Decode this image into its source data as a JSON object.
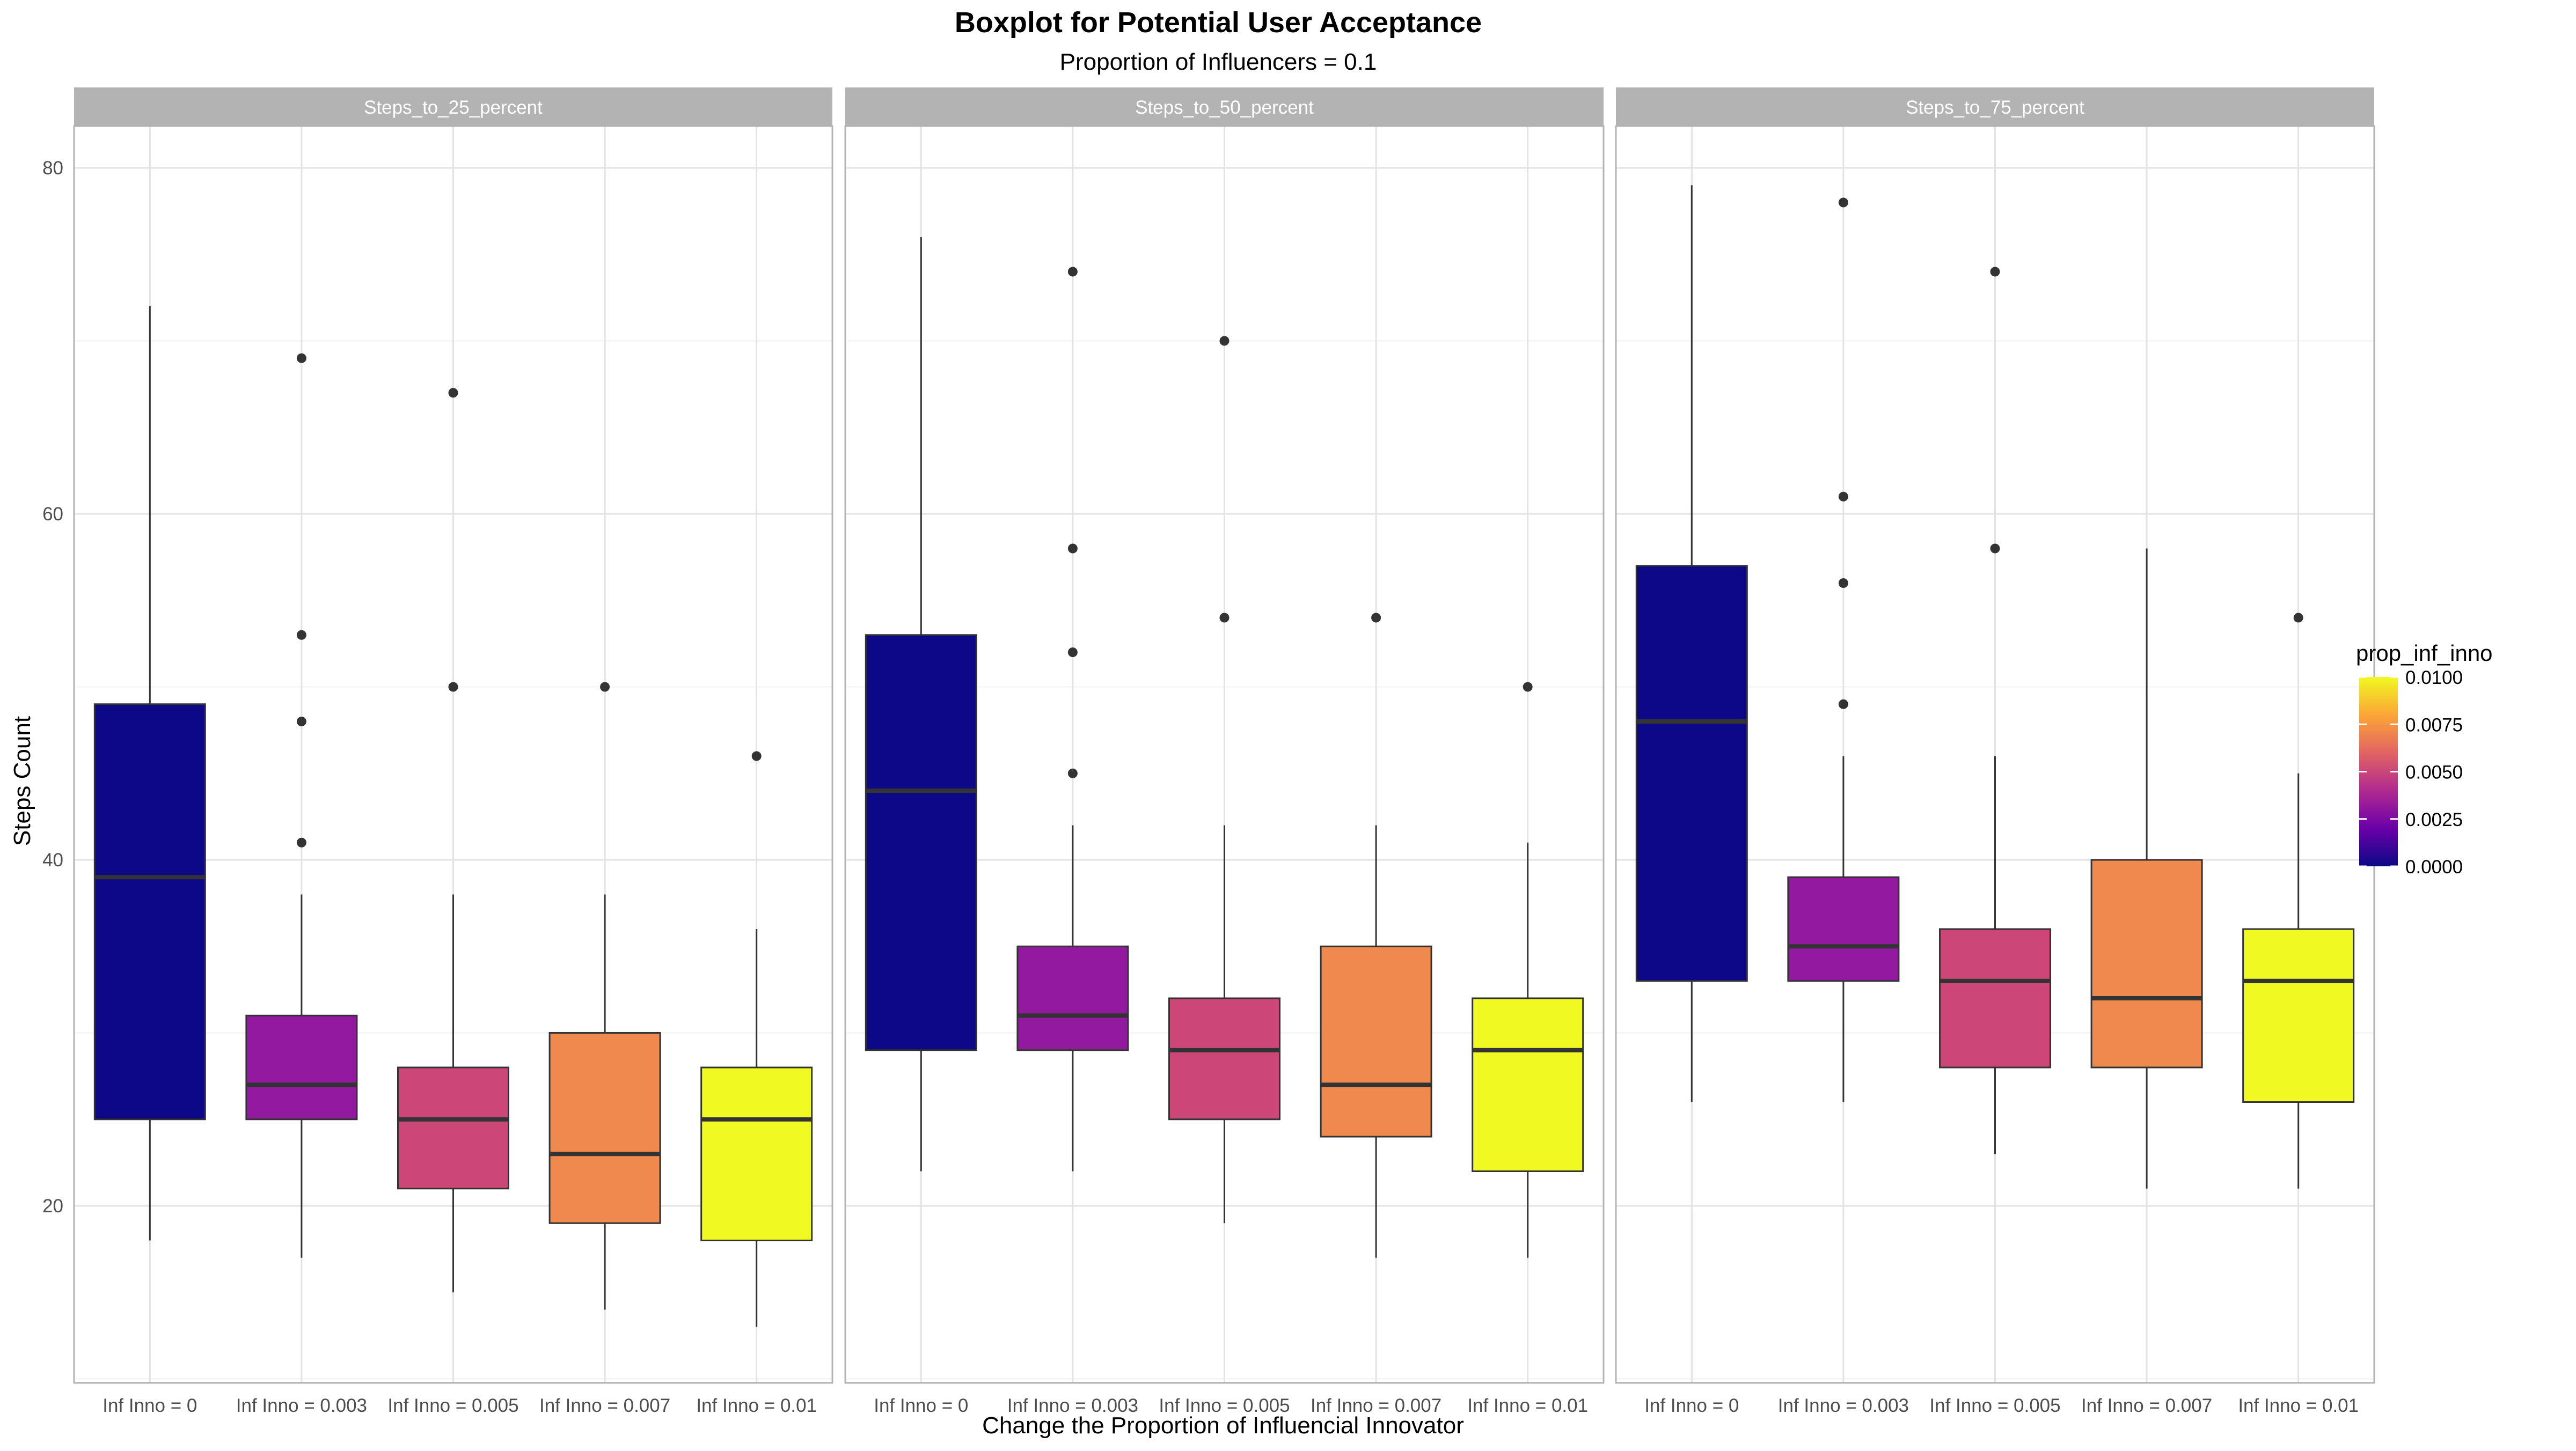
{
  "chart_data": {
    "type": "boxplot",
    "title": "Boxplot for Potential User Acceptance",
    "subtitle": "Proportion of Influencers = 0.1",
    "xlabel": "Change the Proportion of Influencial Innovator",
    "ylabel": "Steps Count",
    "ylim": [
      10,
      82
    ],
    "yticks": [
      20,
      40,
      60,
      80
    ],
    "grid": true,
    "categories": [
      "Inf Inno = 0",
      "Inf Inno = 0.003",
      "Inf Inno = 0.005",
      "Inf Inno = 0.007",
      "Inf Inno = 0.01"
    ],
    "category_values": [
      0,
      0.003,
      0.005,
      0.007,
      0.01
    ],
    "legend": {
      "title": "prop_inf_inno",
      "position": "right",
      "type": "colorbar",
      "ticks": [
        "0.0000",
        "0.0025",
        "0.0050",
        "0.0075",
        "0.0100"
      ],
      "tick_values": [
        0,
        0.0025,
        0.005,
        0.0075,
        0.01
      ],
      "colors": [
        "#0d0887",
        "#6a00a8",
        "#b12a90",
        "#e16462",
        "#fca636",
        "#f0f921"
      ]
    },
    "fill_colors": [
      "#0d0887",
      "#9319a0",
      "#cc4778",
      "#f0894e",
      "#f0f921"
    ],
    "facets": [
      {
        "label": "Steps_to_25_percent",
        "boxes": [
          {
            "whisker_low": 18,
            "q1": 25,
            "median": 39,
            "q3": 49,
            "whisker_high": 72,
            "outliers": []
          },
          {
            "whisker_low": 17,
            "q1": 25,
            "median": 27,
            "q3": 31,
            "whisker_high": 38,
            "outliers": [
              41,
              48,
              53,
              69
            ]
          },
          {
            "whisker_low": 15,
            "q1": 21,
            "median": 25,
            "q3": 28,
            "whisker_high": 38,
            "outliers": [
              50,
              67
            ]
          },
          {
            "whisker_low": 14,
            "q1": 19,
            "median": 23,
            "q3": 30,
            "whisker_high": 38,
            "outliers": [
              50
            ]
          },
          {
            "whisker_low": 13,
            "q1": 18,
            "median": 25,
            "q3": 28,
            "whisker_high": 36,
            "outliers": [
              46
            ]
          }
        ]
      },
      {
        "label": "Steps_to_50_percent",
        "boxes": [
          {
            "whisker_low": 22,
            "q1": 29,
            "median": 44,
            "q3": 53,
            "whisker_high": 76,
            "outliers": []
          },
          {
            "whisker_low": 22,
            "q1": 29,
            "median": 31,
            "q3": 35,
            "whisker_high": 42,
            "outliers": [
              45,
              52,
              58,
              74
            ]
          },
          {
            "whisker_low": 19,
            "q1": 25,
            "median": 29,
            "q3": 32,
            "whisker_high": 42,
            "outliers": [
              54,
              70
            ]
          },
          {
            "whisker_low": 17,
            "q1": 24,
            "median": 27,
            "q3": 35,
            "whisker_high": 42,
            "outliers": [
              54
            ]
          },
          {
            "whisker_low": 17,
            "q1": 22,
            "median": 29,
            "q3": 32,
            "whisker_high": 41,
            "outliers": [
              50
            ]
          }
        ]
      },
      {
        "label": "Steps_to_75_percent",
        "boxes": [
          {
            "whisker_low": 26,
            "q1": 33,
            "median": 48,
            "q3": 57,
            "whisker_high": 79,
            "outliers": []
          },
          {
            "whisker_low": 26,
            "q1": 33,
            "median": 35,
            "q3": 39,
            "whisker_high": 46,
            "outliers": [
              49,
              56,
              61,
              78
            ]
          },
          {
            "whisker_low": 23,
            "q1": 28,
            "median": 33,
            "q3": 36,
            "whisker_high": 46,
            "outliers": [
              58,
              74
            ]
          },
          {
            "whisker_low": 21,
            "q1": 28,
            "median": 32,
            "q3": 40,
            "whisker_high": 58,
            "outliers": []
          },
          {
            "whisker_low": 21,
            "q1": 26,
            "median": 33,
            "q3": 36,
            "whisker_high": 45,
            "outliers": [
              54
            ]
          }
        ]
      }
    ]
  }
}
